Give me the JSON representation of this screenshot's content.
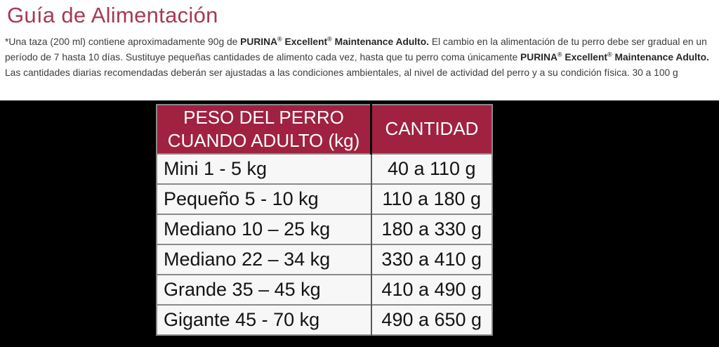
{
  "page": {
    "title": "Guía de Alimentación"
  },
  "colors": {
    "title_accent": "#A53B55",
    "table_header_bg": "#A02240",
    "table_header_text": "#FFFFFF",
    "band_bg": "#000000",
    "table_bg": "#F7F7F7",
    "body_text": "#3B3B3B"
  },
  "paragraph": {
    "segments": [
      {
        "text": "*Una taza (200 ml) contiene aproximadamente 90g de "
      },
      {
        "text": "PURINA"
      },
      {
        "text": "®"
      },
      {
        "text": " Excellent"
      },
      {
        "text": "®"
      },
      {
        "text": " Maintenance Adulto."
      },
      {
        "text": " El cambio en la alimentación de tu perro debe ser gradual en un período de 7 hasta 10 días. Sustituye pequeñas cantidades de alimento cada vez, hasta que tu perro coma únicamente "
      },
      {
        "text": "PURINA"
      },
      {
        "text": "®"
      },
      {
        "text": " Excellent"
      },
      {
        "text": "®"
      },
      {
        "text": " Maintenance Adulto."
      },
      {
        "text": " Las cantidades diarias recomendadas deberán ser ajustadas a las condiciones ambientales, al nivel de actividad del perro y a su condición física. 30 a 100 g"
      }
    ]
  },
  "table": {
    "headers": [
      "PESO DEL PERRO CUANDO ADULTO (kg)",
      "CANTIDAD"
    ],
    "rows": [
      {
        "weight": "Mini 1 - 5 kg",
        "amount": "40 a 110 g"
      },
      {
        "weight": "Pequeño 5 - 10 kg",
        "amount": "110 a 180 g"
      },
      {
        "weight": "Mediano 10 – 25 kg",
        "amount": "180 a 330 g"
      },
      {
        "weight": "Mediano 22 – 34 kg",
        "amount": "330 a 410 g"
      },
      {
        "weight": "Grande 35 – 45 kg",
        "amount": "410 a 490 g"
      },
      {
        "weight": "Gigante 45 - 70 kg",
        "amount": "490 a 650 g"
      }
    ]
  }
}
